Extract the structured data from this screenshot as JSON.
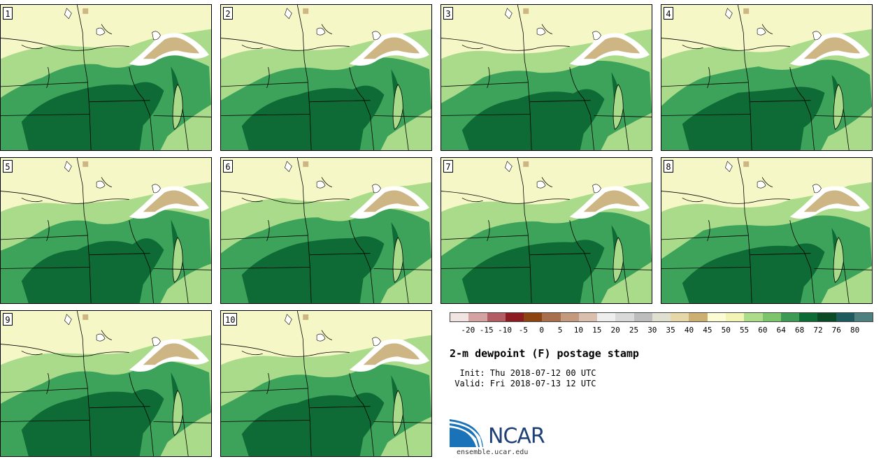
{
  "figure": {
    "title": "2-m dewpoint (F) postage stamp",
    "init_line": "  Init: Thu 2018-07-12 00 UTC",
    "valid_line": " Valid: Fri 2018-07-13 12 UTC",
    "logo_text": "NCAR",
    "site": "ensemble.ucar.edu"
  },
  "members": [
    "1",
    "2",
    "3",
    "4",
    "5",
    "6",
    "7",
    "8",
    "9",
    "10"
  ],
  "colorbar": {
    "colors": [
      "#f3e4e4",
      "#d5a2a2",
      "#b25d64",
      "#8c1c22",
      "#8c4410",
      "#a86f4c",
      "#c49a7e",
      "#dbbfae",
      "#eeeeee",
      "#d9d9d9",
      "#bdbdbd",
      "#dfe0d0",
      "#e5d7a8",
      "#cbb072",
      "#fbfbd4",
      "#f2f4b5",
      "#addc8a",
      "#7cc56d",
      "#3c9a55",
      "#0d6b35",
      "#0b4a25",
      "#1f5a5e",
      "#4f8080"
    ],
    "ticks": [
      "-20",
      "-15",
      "-10",
      "-5",
      "0",
      "5",
      "10",
      "15",
      "20",
      "25",
      "30",
      "35",
      "40",
      "45",
      "50",
      "55",
      "60",
      "64",
      "68",
      "72",
      "76",
      "80"
    ],
    "legend_colors": {
      "lowest": "#f3e4e4",
      "highest": "#4f8080"
    }
  },
  "map_colors": {
    "dry": "#f6f7c6",
    "light_green": "#a9db8b",
    "medium_green": "#3ea35a",
    "dark_green": "#0e6b35",
    "tan": "#cdb584",
    "white_snow": "#ffffff",
    "water_boundary": "#000000"
  }
}
